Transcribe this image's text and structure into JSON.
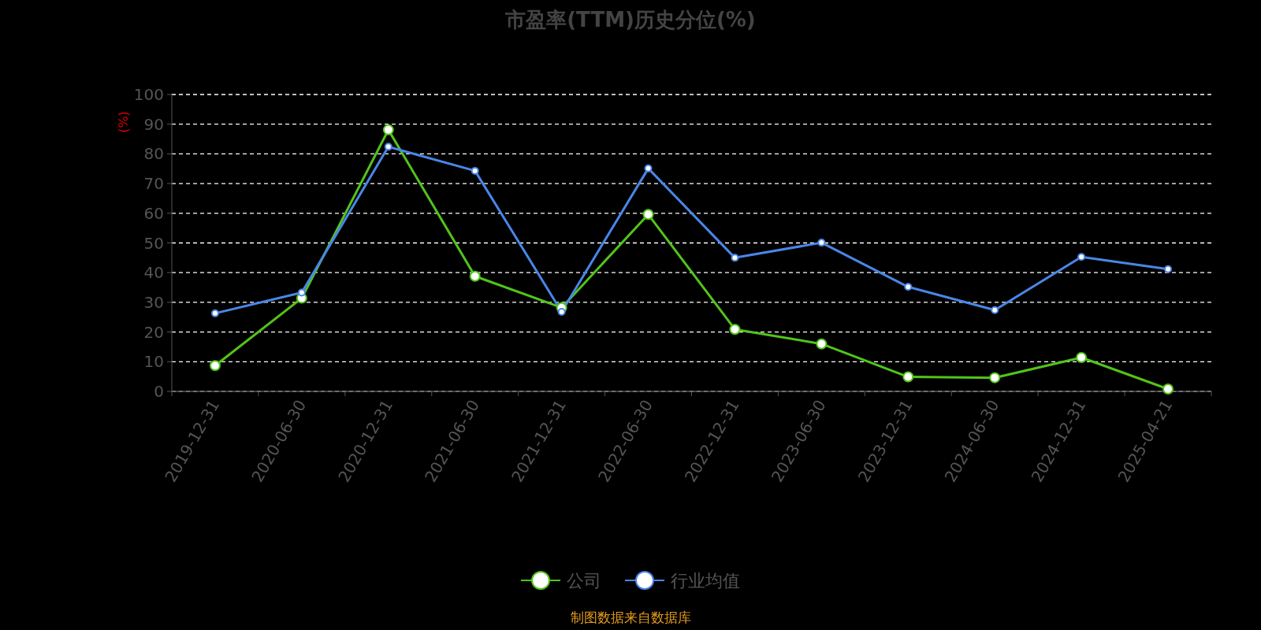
{
  "chart_data": {
    "type": "line",
    "title": "市盈率(TTM)历史分位(%)",
    "ylabel": "(%)",
    "annotations": [
      "制图数据来自数据库"
    ],
    "categories": [
      "2019-12-31",
      "2020-06-30",
      "2020-12-31",
      "2021-06-30",
      "2021-12-31",
      "2022-06-30",
      "2022-12-31",
      "2023-06-30",
      "2023-12-31",
      "2024-06-30",
      "2024-12-31",
      "2025-04-21"
    ],
    "series": [
      {
        "name": "公司",
        "color": "#52c41a",
        "values": [
          8.7,
          31.4,
          88.1,
          38.8,
          28.2,
          59.6,
          20.9,
          16.0,
          4.9,
          4.6,
          11.4,
          0.8
        ]
      },
      {
        "name": "行业均值",
        "color": "#4a86e8",
        "values": [
          26.3,
          33.3,
          82.4,
          74.3,
          26.8,
          75.1,
          45.0,
          50.1,
          35.2,
          27.4,
          45.3,
          41.2
        ]
      }
    ],
    "ylim": [
      0,
      100
    ],
    "yticks": [
      0,
      10,
      20,
      30,
      40,
      50,
      60,
      70,
      80,
      90,
      100
    ],
    "grid": "y",
    "legend": "bottom",
    "marker": "circle"
  }
}
